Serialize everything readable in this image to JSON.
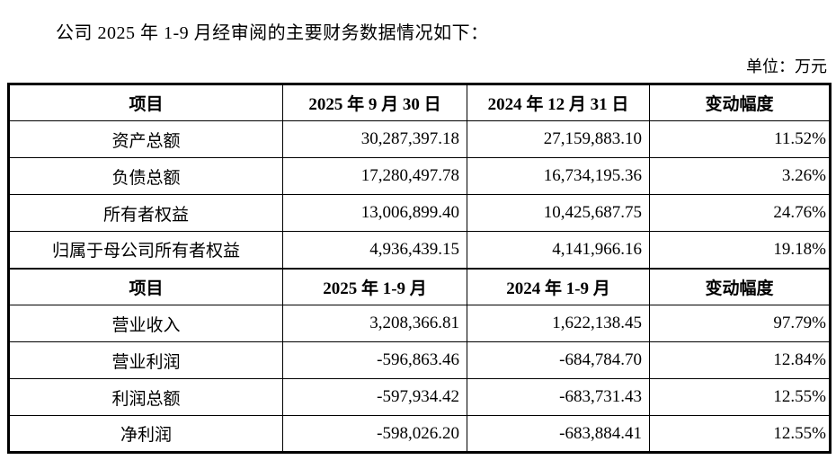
{
  "page": {
    "title": "公司 2025 年 1-9 月经审阅的主要财务数据情况如下：",
    "unit_label": "单位：万元"
  },
  "colors": {
    "background": "#ffffff",
    "text": "#000000",
    "border": "#000000"
  },
  "table": {
    "sections": [
      {
        "header": [
          "项目",
          "2025 年 9 月 30 日",
          "2024 年 12 月 31 日",
          "变动幅度"
        ],
        "rows": [
          [
            "资产总额",
            "30,287,397.18",
            "27,159,883.10",
            "11.52%"
          ],
          [
            "负债总额",
            "17,280,497.78",
            "16,734,195.36",
            "3.26%"
          ],
          [
            "所有者权益",
            "13,006,899.40",
            "10,425,687.75",
            "24.76%"
          ],
          [
            "归属于母公司所有者权益",
            "4,936,439.15",
            "4,141,966.16",
            "19.18%"
          ]
        ]
      },
      {
        "header": [
          "项目",
          "2025 年 1-9 月",
          "2024 年 1-9 月",
          "变动幅度"
        ],
        "rows": [
          [
            "营业收入",
            "3,208,366.81",
            "1,622,138.45",
            "97.79%"
          ],
          [
            "营业利润",
            "-596,863.46",
            "-684,784.70",
            "12.84%"
          ],
          [
            "利润总额",
            "-597,934.42",
            "-683,731.43",
            "12.55%"
          ],
          [
            "净利润",
            "-598,026.20",
            "-683,884.41",
            "12.55%"
          ]
        ]
      }
    ]
  }
}
